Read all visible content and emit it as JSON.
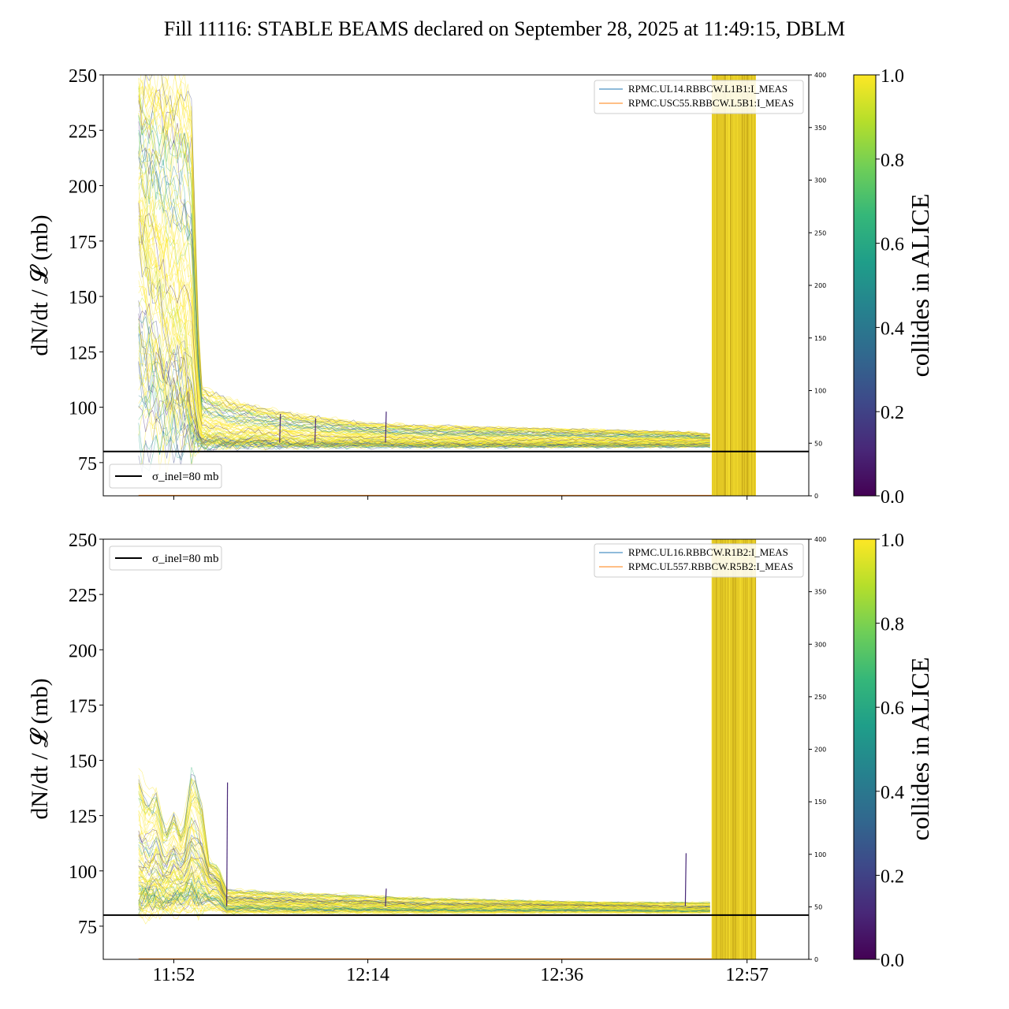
{
  "title": "Fill 11116: STABLE BEAMS declared on September 28, 2025 at 11:49:15, DBLM",
  "colors": {
    "viridis": [
      "#440154",
      "#482878",
      "#3e4989",
      "#31688e",
      "#26828e",
      "#1f9e89",
      "#35b779",
      "#6ece58",
      "#b5de2b",
      "#fde725"
    ],
    "ref_line": "#000000",
    "current_line_1": "#1f77b4",
    "current_line_2": "#ff7f0e",
    "band": "#e3c825"
  },
  "chart_data": [
    {
      "type": "line",
      "ylabel": "dN/dt / 𝓛 (mb)",
      "ylim": [
        60,
        250
      ],
      "yticks": [
        75,
        100,
        125,
        150,
        175,
        200,
        225,
        250
      ],
      "y2lim": [
        0,
        400
      ],
      "y2ticks": [
        0,
        50,
        100,
        150,
        200,
        250,
        300,
        350,
        400
      ],
      "x_range": [
        "11:44",
        "13:04"
      ],
      "xtick_positions": [
        "11:52",
        "12:14",
        "12:36",
        "12:57"
      ],
      "xtick_labels": [],
      "reference_line": {
        "y": 80,
        "label": "σ_inel=80 mb"
      },
      "legend_series": [
        {
          "name": "RPMC.UL14.RBBCW.L1B1:I_MEAS",
          "color": "#1f77b4"
        },
        {
          "name": "RPMC.USC55.RBBCW.L5B1:I_MEAS",
          "color": "#ff7f0e"
        }
      ],
      "legend_placement": {
        "series": "top-right",
        "reference": "bottom-left"
      },
      "colorbar": {
        "label": "collides in ALICE",
        "ticks": [
          "0.0",
          "0.2",
          "0.4",
          "0.6",
          "0.8",
          "1.0"
        ],
        "range": [
          0,
          1
        ]
      },
      "band_x": [
        "12:53",
        "12:58"
      ],
      "profile": {
        "x": [
          "11:48",
          "11:49",
          "11:50",
          "11:51",
          "11:52",
          "11:53",
          "11:54",
          "11:55",
          "11:58",
          "12:02",
          "12:06",
          "12:10",
          "12:14",
          "12:20",
          "12:30",
          "12:40",
          "12:50",
          "12:53"
        ],
        "upper": [
          250,
          250,
          250,
          250,
          250,
          250,
          240,
          110,
          104,
          100,
          97,
          95,
          93,
          92,
          91,
          90,
          89,
          88
        ],
        "center": [
          180,
          160,
          150,
          140,
          135,
          125,
          110,
          88,
          86,
          86,
          85,
          85,
          85,
          84,
          84,
          84,
          84,
          84
        ],
        "lower": [
          82,
          82,
          82,
          82,
          83,
          83,
          82,
          82,
          82,
          82,
          82,
          82,
          82,
          82,
          82,
          82,
          82,
          82
        ]
      },
      "spikes": [
        {
          "x": "12:04",
          "y": 97
        },
        {
          "x": "12:08",
          "y": 95
        },
        {
          "x": "12:16",
          "y": 98
        }
      ]
    },
    {
      "type": "line",
      "ylabel": "dN/dt / 𝓛 (mb)",
      "ylim": [
        60,
        250
      ],
      "yticks": [
        75,
        100,
        125,
        150,
        175,
        200,
        225,
        250
      ],
      "y2lim": [
        0,
        400
      ],
      "y2ticks": [
        0,
        50,
        100,
        150,
        200,
        250,
        300,
        350,
        400
      ],
      "x_range": [
        "11:44",
        "13:04"
      ],
      "xtick_positions": [
        "11:52",
        "12:14",
        "12:36",
        "12:57"
      ],
      "xtick_labels": [
        "11:52",
        "12:14",
        "12:36",
        "12:57"
      ],
      "reference_line": {
        "y": 80,
        "label": "σ_inel=80 mb"
      },
      "legend_series": [
        {
          "name": "RPMC.UL16.RBBCW.R1B2:I_MEAS",
          "color": "#1f77b4"
        },
        {
          "name": "RPMC.UL557.RBBCW.R5B2:I_MEAS",
          "color": "#ff7f0e"
        }
      ],
      "legend_placement": {
        "series": "top-right",
        "reference": "top-left"
      },
      "colorbar": {
        "label": "collides in ALICE",
        "ticks": [
          "0.0",
          "0.2",
          "0.4",
          "0.6",
          "0.8",
          "1.0"
        ],
        "range": [
          0,
          1
        ]
      },
      "band_x": [
        "12:53",
        "12:58"
      ],
      "profile": {
        "x": [
          "11:48",
          "11:49",
          "11:50",
          "11:51",
          "11:52",
          "11:53",
          "11:54",
          "11:55",
          "11:56",
          "11:57",
          "11:58",
          "12:02",
          "12:08",
          "12:14",
          "12:20",
          "12:30",
          "12:40",
          "12:50",
          "12:53"
        ],
        "upper": [
          150,
          135,
          140,
          120,
          130,
          118,
          148,
          140,
          105,
          102,
          92,
          91,
          90,
          89,
          88,
          87,
          86,
          86,
          86
        ],
        "center": [
          98,
          96,
          100,
          95,
          98,
          95,
          105,
          100,
          95,
          94,
          86,
          86,
          85,
          85,
          84,
          84,
          84,
          83,
          83
        ],
        "lower": [
          81,
          81,
          81,
          82,
          82,
          82,
          82,
          82,
          82,
          82,
          81,
          81,
          81,
          81,
          81,
          81,
          81,
          81,
          81
        ]
      },
      "spikes": [
        {
          "x": "11:58",
          "y": 140
        },
        {
          "x": "12:16",
          "y": 92
        },
        {
          "x": "12:50",
          "y": 108
        }
      ]
    }
  ]
}
